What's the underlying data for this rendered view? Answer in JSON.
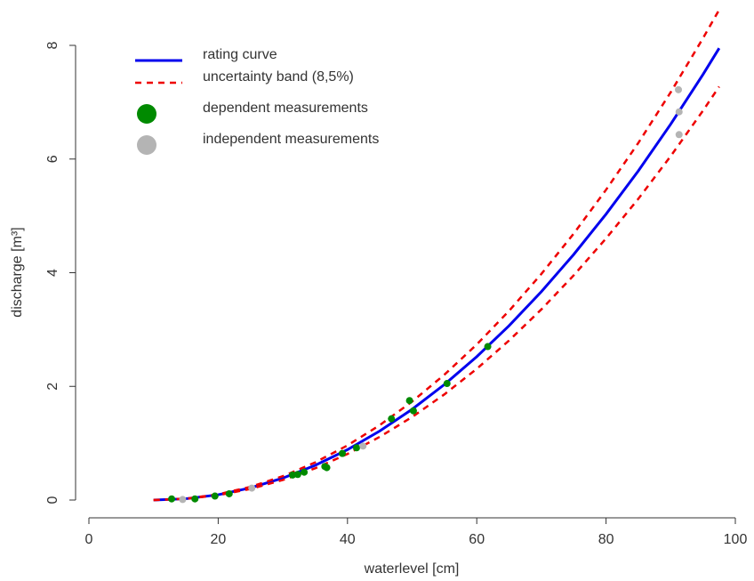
{
  "chart_data": {
    "type": "line",
    "x_label": "waterlevel [cm]",
    "y_label": "discharge [m³]",
    "xlim": [
      0,
      100
    ],
    "xticks": [
      0,
      20,
      40,
      60,
      80,
      100
    ],
    "ylim": [
      0,
      8
    ],
    "yticks": [
      0,
      2,
      4,
      6,
      8
    ],
    "series": [
      {
        "name": "rating curve",
        "color": "#0000ee",
        "kind": "line",
        "dashed": false,
        "x": [
          10,
          15,
          20,
          25,
          30,
          35,
          40,
          45,
          50,
          55,
          60,
          65,
          70,
          75,
          80,
          85,
          90,
          95,
          97.5
        ],
        "values": [
          0,
          0.0225,
          0.093,
          0.214,
          0.386,
          0.61,
          0.886,
          1.215,
          1.597,
          2.033,
          2.523,
          3.068,
          3.667,
          4.321,
          5.031,
          5.793,
          6.613,
          7.489,
          7.95
        ]
      },
      {
        "name": "uncertainty band (8,5%)",
        "color": "#ee0000",
        "kind": "line",
        "dashed": true,
        "x": [
          10,
          15,
          20,
          25,
          30,
          35,
          40,
          45,
          50,
          55,
          60,
          65,
          70,
          75,
          80,
          85,
          90,
          95,
          97.5
        ],
        "values": [
          0,
          0.024,
          0.101,
          0.232,
          0.419,
          0.662,
          0.961,
          1.318,
          1.733,
          2.206,
          2.737,
          3.329,
          3.979,
          4.688,
          5.459,
          6.285,
          7.175,
          8.126,
          8.626
        ],
        "lower": [
          0,
          0.021,
          0.085,
          0.196,
          0.353,
          0.558,
          0.811,
          1.112,
          1.461,
          1.86,
          2.309,
          2.807,
          3.355,
          3.954,
          4.603,
          5.301,
          6.051,
          6.852,
          7.274
        ]
      },
      {
        "name": "dependent measurements",
        "color": "#008a00",
        "kind": "scatter",
        "x": [
          12.8,
          16.4,
          19.5,
          21.7,
          31.5,
          32.3,
          33.3,
          36.5,
          36.8,
          39.2,
          41.4,
          46.8,
          49.6,
          50.2,
          55.4,
          61.7
        ],
        "values": [
          0.02,
          0.02,
          0.07,
          0.11,
          0.44,
          0.45,
          0.49,
          0.59,
          0.57,
          0.82,
          0.92,
          1.43,
          1.75,
          1.57,
          2.05,
          2.7
        ]
      },
      {
        "name": "independent measurements",
        "color": "#b4b4b4",
        "kind": "scatter",
        "x": [
          14.5,
          25.2,
          42.4,
          91.2,
          91.3,
          91.3
        ],
        "values": [
          0.01,
          0.21,
          0.95,
          7.22,
          6.83,
          6.43
        ]
      }
    ]
  }
}
